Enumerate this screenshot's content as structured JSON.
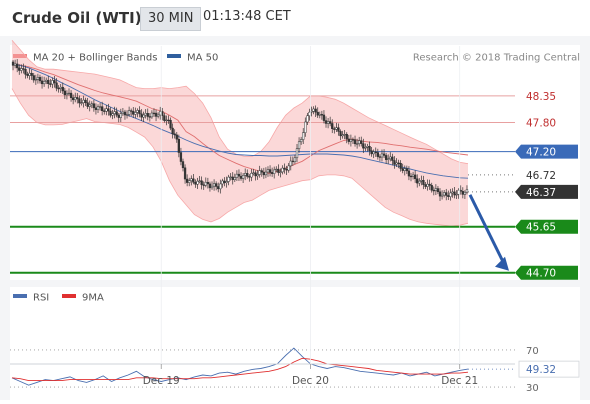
{
  "header": {
    "title": "Crude Oil (WTI)",
    "timeframe": "30 MIN",
    "time": "01:13:48 CET"
  },
  "colors": {
    "candle": "#333333",
    "bollinger_band": "#f7a8a8",
    "ma20": "#e07070",
    "ma50": "#4a6fb0",
    "resistance_line": "#e8a0a0",
    "pivot_line": "#3a6ab8",
    "support_line": "#1a8a1a",
    "current_price_tag": "#333333",
    "forecast_arrow": "#2b5aa8",
    "rsi": "#4a6fb0",
    "rsi_ma": "#e03030"
  },
  "chart_data": [
    {
      "type": "line",
      "legend": [
        {
          "name": "MA 20 + Bollinger Bands",
          "color": "#f08080"
        },
        {
          "name": "MA 50",
          "color": "#2f5f9e"
        }
      ],
      "copyright": "Research © 2018 Trading Central",
      "x_ticks": [
        {
          "label": "Dec 19",
          "index": 18
        },
        {
          "label": "Dec 20",
          "index": 36
        },
        {
          "label": "Dec 21",
          "index": 54
        }
      ],
      "ylim": [
        44.55,
        49.4
      ],
      "price_levels": [
        {
          "value": 48.35,
          "label": "48.35",
          "kind": "resistance"
        },
        {
          "value": 47.8,
          "label": "47.80",
          "kind": "resistance"
        },
        {
          "value": 47.2,
          "label": "47.20",
          "kind": "pivot"
        },
        {
          "value": 46.72,
          "label": "46.72",
          "kind": "dotted"
        },
        {
          "value": 46.37,
          "label": "46.37",
          "kind": "current"
        },
        {
          "value": 45.65,
          "label": "45.65",
          "kind": "support"
        },
        {
          "value": 44.7,
          "label": "44.70",
          "kind": "support"
        }
      ],
      "close": [
        49.0,
        48.92,
        48.8,
        48.7,
        48.63,
        48.63,
        48.48,
        48.36,
        48.26,
        48.2,
        48.12,
        48.08,
        48.0,
        47.95,
        48.0,
        48.02,
        47.94,
        47.96,
        47.98,
        47.8,
        47.42,
        46.62,
        46.58,
        46.55,
        46.5,
        46.48,
        46.62,
        46.68,
        46.7,
        46.72,
        46.76,
        46.78,
        46.8,
        46.82,
        47.0,
        47.48,
        48.06,
        48.0,
        47.82,
        47.68,
        47.54,
        47.42,
        47.38,
        47.26,
        47.14,
        47.1,
        47.02,
        46.88,
        46.74,
        46.6,
        46.52,
        46.42,
        46.3,
        46.32,
        46.36,
        46.37
      ],
      "ma20": [
        49.0,
        48.99,
        48.95,
        48.9,
        48.84,
        48.79,
        48.72,
        48.65,
        48.58,
        48.52,
        48.46,
        48.41,
        48.37,
        48.33,
        48.29,
        48.24,
        48.16,
        48.08,
        48.04,
        47.95,
        47.85,
        47.61,
        47.51,
        47.37,
        47.24,
        47.12,
        47.04,
        46.96,
        46.89,
        46.84,
        46.79,
        46.75,
        46.79,
        46.86,
        46.93,
        47.0,
        47.11,
        47.22,
        47.29,
        47.36,
        47.43,
        47.46,
        47.42,
        47.4,
        47.39,
        47.37,
        47.34,
        47.32,
        47.29,
        47.27,
        47.25,
        47.22,
        47.19,
        47.17,
        47.15,
        47.13
      ],
      "ma50": [
        49.0,
        48.98,
        48.93,
        48.86,
        48.79,
        48.71,
        48.62,
        48.54,
        48.45,
        48.36,
        48.27,
        48.19,
        48.11,
        48.03,
        47.95,
        47.88,
        47.81,
        47.74,
        47.66,
        47.59,
        47.52,
        47.44,
        47.37,
        47.31,
        47.26,
        47.21,
        47.17,
        47.14,
        47.13,
        47.12,
        47.12,
        47.11,
        47.11,
        47.12,
        47.13,
        47.14,
        47.15,
        47.15,
        47.15,
        47.14,
        47.13,
        47.11,
        47.08,
        47.04,
        47.0,
        46.96,
        46.92,
        46.88,
        46.84,
        46.8,
        46.76,
        46.73,
        46.7,
        46.68,
        46.66,
        46.65
      ],
      "bollinger_upper": [
        49.5,
        49.3,
        49.1,
        48.95,
        48.9,
        48.9,
        48.88,
        48.86,
        48.84,
        48.82,
        48.8,
        48.76,
        48.72,
        48.68,
        48.6,
        48.52,
        48.5,
        48.5,
        48.52,
        48.5,
        48.52,
        48.55,
        48.4,
        48.2,
        47.9,
        47.5,
        47.25,
        47.15,
        47.1,
        47.1,
        47.2,
        47.4,
        47.7,
        47.95,
        48.1,
        48.2,
        48.35,
        48.35,
        48.32,
        48.28,
        48.2,
        48.1,
        48.0,
        47.9,
        47.82,
        47.74,
        47.66,
        47.58,
        47.5,
        47.42,
        47.35,
        47.25,
        47.15,
        47.05,
        46.98,
        46.95
      ],
      "bollinger_lower": [
        48.5,
        48.2,
        47.95,
        47.8,
        47.75,
        47.75,
        47.76,
        47.8,
        47.84,
        47.88,
        47.82,
        47.8,
        47.78,
        47.76,
        47.7,
        47.6,
        47.5,
        47.3,
        47.0,
        46.6,
        46.3,
        46.1,
        45.9,
        45.8,
        45.75,
        45.82,
        45.95,
        46.05,
        46.15,
        46.2,
        46.3,
        46.4,
        46.45,
        46.5,
        46.55,
        46.6,
        46.62,
        46.7,
        46.72,
        46.72,
        46.7,
        46.65,
        46.5,
        46.35,
        46.2,
        46.05,
        45.95,
        45.88,
        45.8,
        45.75,
        45.72,
        45.7,
        45.68,
        45.66,
        45.68,
        45.72
      ]
    },
    {
      "type": "line",
      "legend": [
        {
          "name": "RSI",
          "color": "#4a6fb0"
        },
        {
          "name": "9MA",
          "color": "#e03030"
        }
      ],
      "ylim": [
        15,
        85
      ],
      "y_ticks": [
        {
          "value": 70,
          "label": "70"
        },
        {
          "value": 30,
          "label": "30"
        }
      ],
      "current": {
        "value": 49.32,
        "label": "49.32"
      },
      "rsi": [
        40,
        36,
        32,
        35,
        38,
        37,
        39,
        41,
        37,
        35,
        38,
        42,
        36,
        40,
        43,
        47,
        41,
        38,
        36,
        38,
        40,
        38,
        41,
        43,
        42,
        45,
        46,
        44,
        47,
        49,
        50,
        52,
        55,
        64,
        72,
        63,
        55,
        52,
        50,
        52,
        51,
        49,
        47,
        46,
        45,
        44,
        43,
        45,
        42,
        44,
        46,
        42,
        44,
        46,
        48,
        49.3
      ],
      "rsi_ma": [
        40,
        39,
        37,
        37,
        37,
        37,
        37,
        38,
        38,
        38,
        38,
        38,
        38,
        38,
        38,
        40,
        40,
        40,
        39,
        39,
        39,
        39,
        39,
        40,
        40,
        41,
        42,
        43,
        44,
        45,
        46,
        47,
        49,
        52,
        57,
        61,
        60,
        58,
        55,
        54,
        53,
        52,
        51,
        50,
        48,
        47,
        46,
        45,
        44,
        44,
        44,
        44,
        44,
        45,
        45,
        46
      ]
    }
  ]
}
